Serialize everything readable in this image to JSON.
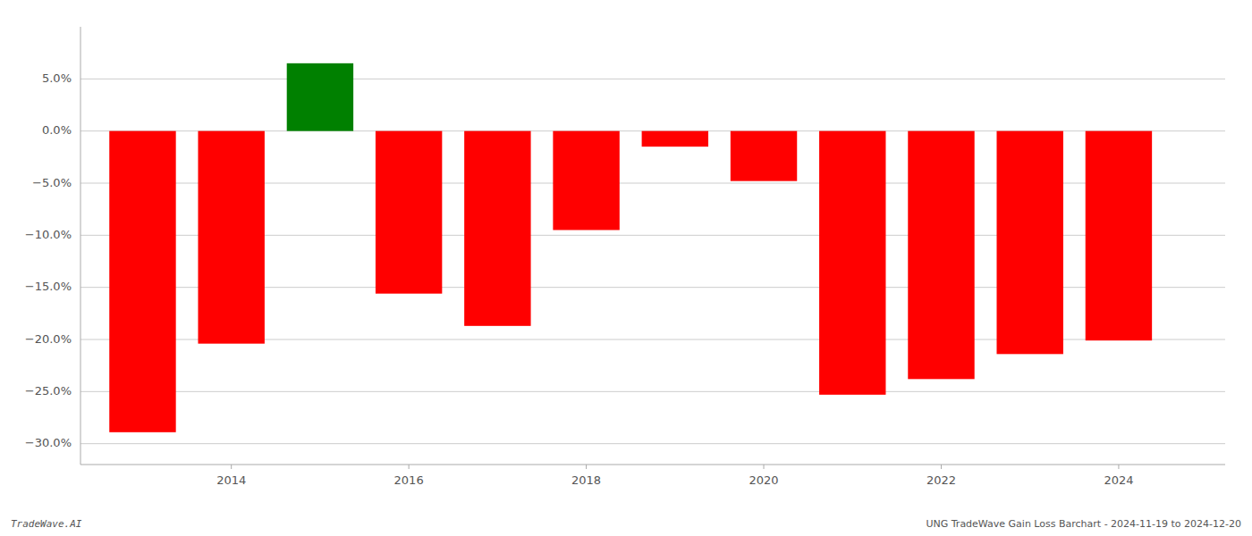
{
  "chart_data": {
    "type": "bar",
    "x": [
      2013,
      2014,
      2015,
      2016,
      2017,
      2018,
      2019,
      2020,
      2021,
      2022,
      2023,
      2024
    ],
    "values": [
      -0.289,
      -0.204,
      0.065,
      -0.156,
      -0.187,
      -0.095,
      -0.015,
      -0.048,
      -0.253,
      -0.238,
      -0.214,
      -0.201
    ],
    "colors": [
      "#ff0000",
      "#ff0000",
      "#008000",
      "#ff0000",
      "#ff0000",
      "#ff0000",
      "#ff0000",
      "#ff0000",
      "#ff0000",
      "#ff0000",
      "#ff0000",
      "#ff0000"
    ],
    "xlim": [
      2012.3,
      2025.2
    ],
    "xticks": [
      2014,
      2016,
      2018,
      2020,
      2022,
      2024
    ],
    "ylim": [
      -0.32,
      0.1
    ],
    "yticks": [
      {
        "value": -0.3,
        "label": "−30.0%"
      },
      {
        "value": -0.25,
        "label": "−25.0%"
      },
      {
        "value": -0.2,
        "label": "−20.0%"
      },
      {
        "value": -0.15,
        "label": "−15.0%"
      },
      {
        "value": -0.1,
        "label": "−10.0%"
      },
      {
        "value": -0.05,
        "label": "−5.0%"
      },
      {
        "value": 0,
        "label": "0.0%"
      },
      {
        "value": 0.05,
        "label": "5.0%"
      }
    ],
    "grid": true,
    "annotations": [
      "TradeWave.AI",
      "UNG TradeWave Gain Loss Barchart - 2024-11-19 to 2024-12-20"
    ]
  }
}
